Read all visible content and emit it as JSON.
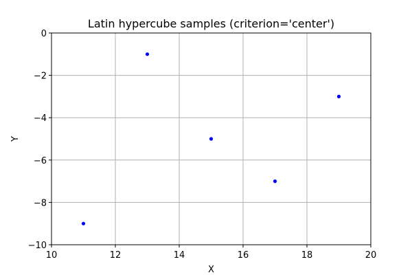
{
  "chart_data": {
    "type": "scatter",
    "title": "Latin hypercube samples (criterion='center')",
    "xlabel": "X",
    "ylabel": "Y",
    "xlim": [
      10,
      20
    ],
    "ylim": [
      -10,
      0
    ],
    "xticks": [
      10,
      12,
      14,
      16,
      18,
      20
    ],
    "yticks": [
      0,
      -2,
      -4,
      -6,
      -8,
      -10
    ],
    "xtick_labels": [
      "10",
      "12",
      "14",
      "16",
      "18",
      "20"
    ],
    "ytick_labels": [
      "0",
      "−2",
      "−4",
      "−6",
      "−8",
      "−10"
    ],
    "grid": true,
    "marker_color": "#0000ff",
    "series": [
      {
        "x": [
          11,
          13,
          15,
          17,
          19
        ],
        "y": [
          -9,
          -1,
          -5,
          -7,
          -3
        ]
      }
    ]
  }
}
